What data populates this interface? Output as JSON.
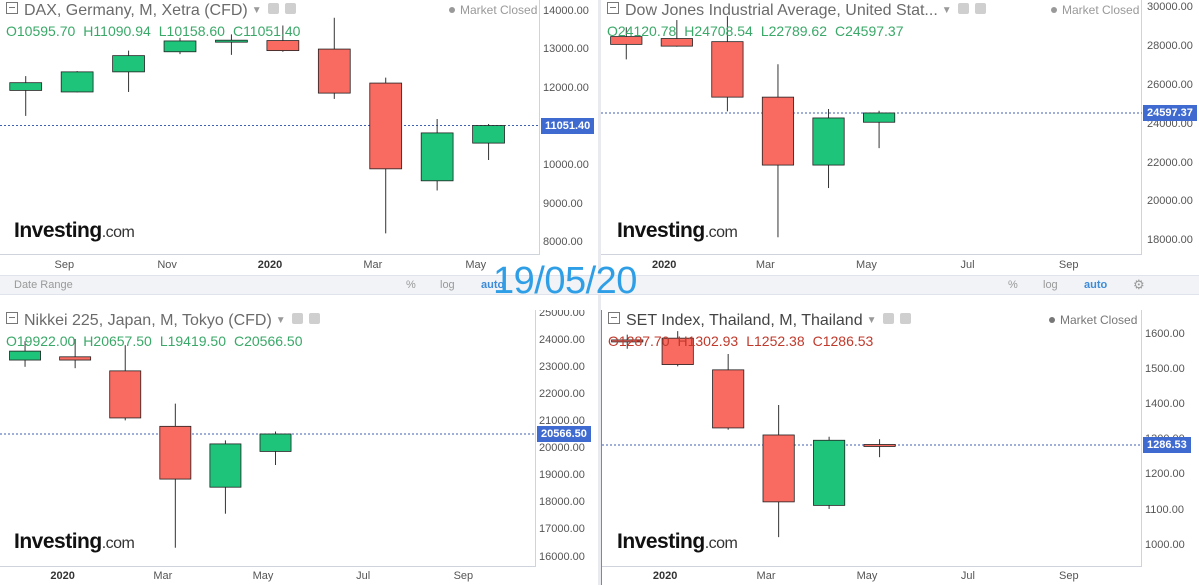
{
  "date_stamp": "19/05/20",
  "toolbars": [
    {
      "date_range": "Date Range",
      "percent": "%",
      "log": "log",
      "auto": "auto"
    },
    {
      "date_range": "",
      "percent": "%",
      "log": "log",
      "auto": "auto"
    }
  ],
  "logo": {
    "brand": "Investing",
    "suffix": ".com"
  },
  "chart_data": [
    {
      "type": "candlestick",
      "title": "DAX, Germany, M, Xetra (CFD)",
      "status": "Market Closed",
      "ohlc": {
        "o": "O10595.70",
        "h": "H11090.94",
        "l": "L10158.60",
        "c": "C11051.40"
      },
      "last_price": "11051.40",
      "last_value": 11051.4,
      "ylim": [
        7700,
        14300
      ],
      "yticks": [
        "14000.00",
        "13000.00",
        "12000.00",
        "11000.00",
        "10000.00",
        "9000.00",
        "8000.00"
      ],
      "ytick_values": [
        14000,
        13000,
        12000,
        11000,
        10000,
        9000,
        8000
      ],
      "xlim": [
        0,
        10.5
      ],
      "xticks": [
        {
          "label": "Sep",
          "pos": 1.25,
          "bold": false
        },
        {
          "label": "Nov",
          "pos": 3.25,
          "bold": false
        },
        {
          "label": "2020",
          "pos": 5.25,
          "bold": true
        },
        {
          "label": "Mar",
          "pos": 7.25,
          "bold": false
        },
        {
          "label": "May",
          "pos": 9.25,
          "bold": false
        }
      ],
      "candles": [
        {
          "o": 11960,
          "h": 12330,
          "l": 11300,
          "c": 12160
        },
        {
          "o": 11920,
          "h": 12460,
          "l": 11910,
          "c": 12440
        },
        {
          "o": 12440,
          "h": 12990,
          "l": 11920,
          "c": 12860
        },
        {
          "o": 12960,
          "h": 13320,
          "l": 12900,
          "c": 13240
        },
        {
          "o": 13250,
          "h": 13410,
          "l": 12880,
          "c": 13260
        },
        {
          "o": 13250,
          "h": 13640,
          "l": 12960,
          "c": 12990
        },
        {
          "o": 13030,
          "h": 13840,
          "l": 11740,
          "c": 11890
        },
        {
          "o": 12150,
          "h": 12290,
          "l": 8260,
          "c": 9930
        },
        {
          "o": 9620,
          "h": 11220,
          "l": 9370,
          "c": 10860
        },
        {
          "o": 10596,
          "h": 11091,
          "l": 10159,
          "c": 11051
        }
      ]
    },
    {
      "type": "candlestick",
      "title": "Dow Jones Industrial Average, United Stat...",
      "status": "Market Closed",
      "ohlc": {
        "o": "O24120.78",
        "h": "H24708.54",
        "l": "L22789.62",
        "c": "C24597.37"
      },
      "last_price": "24597.37",
      "last_value": 24597.37,
      "ylim": [
        17300,
        30400
      ],
      "yticks": [
        "30000.00",
        "28000.00",
        "26000.00",
        "24000.00",
        "22000.00",
        "20000.00",
        "18000.00"
      ],
      "ytick_values": [
        30000,
        28000,
        26000,
        24000,
        22000,
        20000,
        18000
      ],
      "xlim": [
        0,
        10.7
      ],
      "xticks": [
        {
          "label": "2020",
          "pos": 1.25,
          "bold": true
        },
        {
          "label": "Mar",
          "pos": 3.25,
          "bold": false
        },
        {
          "label": "May",
          "pos": 5.25,
          "bold": false
        },
        {
          "label": "Jul",
          "pos": 7.25,
          "bold": false
        },
        {
          "label": "Sep",
          "pos": 9.25,
          "bold": false
        }
      ],
      "candles": [
        {
          "o": 28520,
          "h": 29000,
          "l": 27350,
          "c": 28120
        },
        {
          "o": 28420,
          "h": 29370,
          "l": 28000,
          "c": 28030
        },
        {
          "o": 28260,
          "h": 29570,
          "l": 24680,
          "c": 25410
        },
        {
          "o": 25410,
          "h": 27100,
          "l": 18210,
          "c": 21920
        },
        {
          "o": 21920,
          "h": 24800,
          "l": 20740,
          "c": 24340
        },
        {
          "o": 24120,
          "h": 24710,
          "l": 22790,
          "c": 24597
        }
      ]
    },
    {
      "type": "candlestick",
      "title": "Nikkei 225, Japan, M, Tokyo (CFD)",
      "status": "",
      "ohlc": {
        "o": "O19922.00",
        "h": "H20657.50",
        "l": "L19419.50",
        "c": "C20566.50"
      },
      "last_price": "20566.50",
      "last_value": 20566.5,
      "ylim": [
        15650,
        25150
      ],
      "yticks": [
        "25000.00",
        "24000.00",
        "23000.00",
        "22000.00",
        "21000.00",
        "20000.00",
        "19000.00",
        "18000.00",
        "17000.00",
        "16000.00"
      ],
      "ytick_values": [
        25000,
        24000,
        23000,
        22000,
        21000,
        20000,
        19000,
        18000,
        17000,
        16000
      ],
      "xlim": [
        0,
        10.7
      ],
      "xticks": [
        {
          "label": "2020",
          "pos": 1.25,
          "bold": true
        },
        {
          "label": "Mar",
          "pos": 3.25,
          "bold": false
        },
        {
          "label": "May",
          "pos": 5.25,
          "bold": false
        },
        {
          "label": "Jul",
          "pos": 7.25,
          "bold": false
        },
        {
          "label": "Sep",
          "pos": 9.25,
          "bold": false
        }
      ],
      "candles": [
        {
          "o": 23300,
          "h": 24000,
          "l": 23050,
          "c": 23630
        },
        {
          "o": 23420,
          "h": 24080,
          "l": 23000,
          "c": 23300
        },
        {
          "o": 22900,
          "h": 23850,
          "l": 21070,
          "c": 21160
        },
        {
          "o": 20850,
          "h": 21690,
          "l": 16360,
          "c": 18900
        },
        {
          "o": 18600,
          "h": 20330,
          "l": 17620,
          "c": 20200
        },
        {
          "o": 19922,
          "h": 20658,
          "l": 19420,
          "c": 20567
        }
      ]
    },
    {
      "type": "candlestick",
      "title": "SET Index, Thailand, M, Thailand",
      "status": "Market Closed",
      "ohlc": {
        "o": "O1287.70",
        "h": "H1302.93",
        "l": "L1252.38",
        "c": "C1286.53"
      },
      "last_price": "1286.53",
      "last_value": 1286.53,
      "ylim": [
        940,
        1670
      ],
      "yticks": [
        "1600.00",
        "1500.00",
        "1400.00",
        "1300.00",
        "1200.00",
        "1100.00",
        "1000.00"
      ],
      "ytick_values": [
        1600,
        1500,
        1400,
        1300,
        1200,
        1100,
        1000
      ],
      "xlim": [
        0,
        10.7
      ],
      "xticks": [
        {
          "label": "2020",
          "pos": 1.25,
          "bold": true
        },
        {
          "label": "Mar",
          "pos": 3.25,
          "bold": false
        },
        {
          "label": "May",
          "pos": 5.25,
          "bold": false
        },
        {
          "label": "Jul",
          "pos": 7.25,
          "bold": false
        },
        {
          "label": "Sep",
          "pos": 9.25,
          "bold": false
        }
      ],
      "candles": [
        {
          "o": 1585,
          "h": 1600,
          "l": 1560,
          "c": 1580
        },
        {
          "o": 1590,
          "h": 1610,
          "l": 1510,
          "c": 1515
        },
        {
          "o": 1500,
          "h": 1545,
          "l": 1330,
          "c": 1335
        },
        {
          "o": 1315,
          "h": 1400,
          "l": 1025,
          "c": 1125
        },
        {
          "o": 1115,
          "h": 1310,
          "l": 1105,
          "c": 1300
        },
        {
          "o": 1288,
          "h": 1303,
          "l": 1252,
          "c": 1287
        }
      ]
    }
  ]
}
